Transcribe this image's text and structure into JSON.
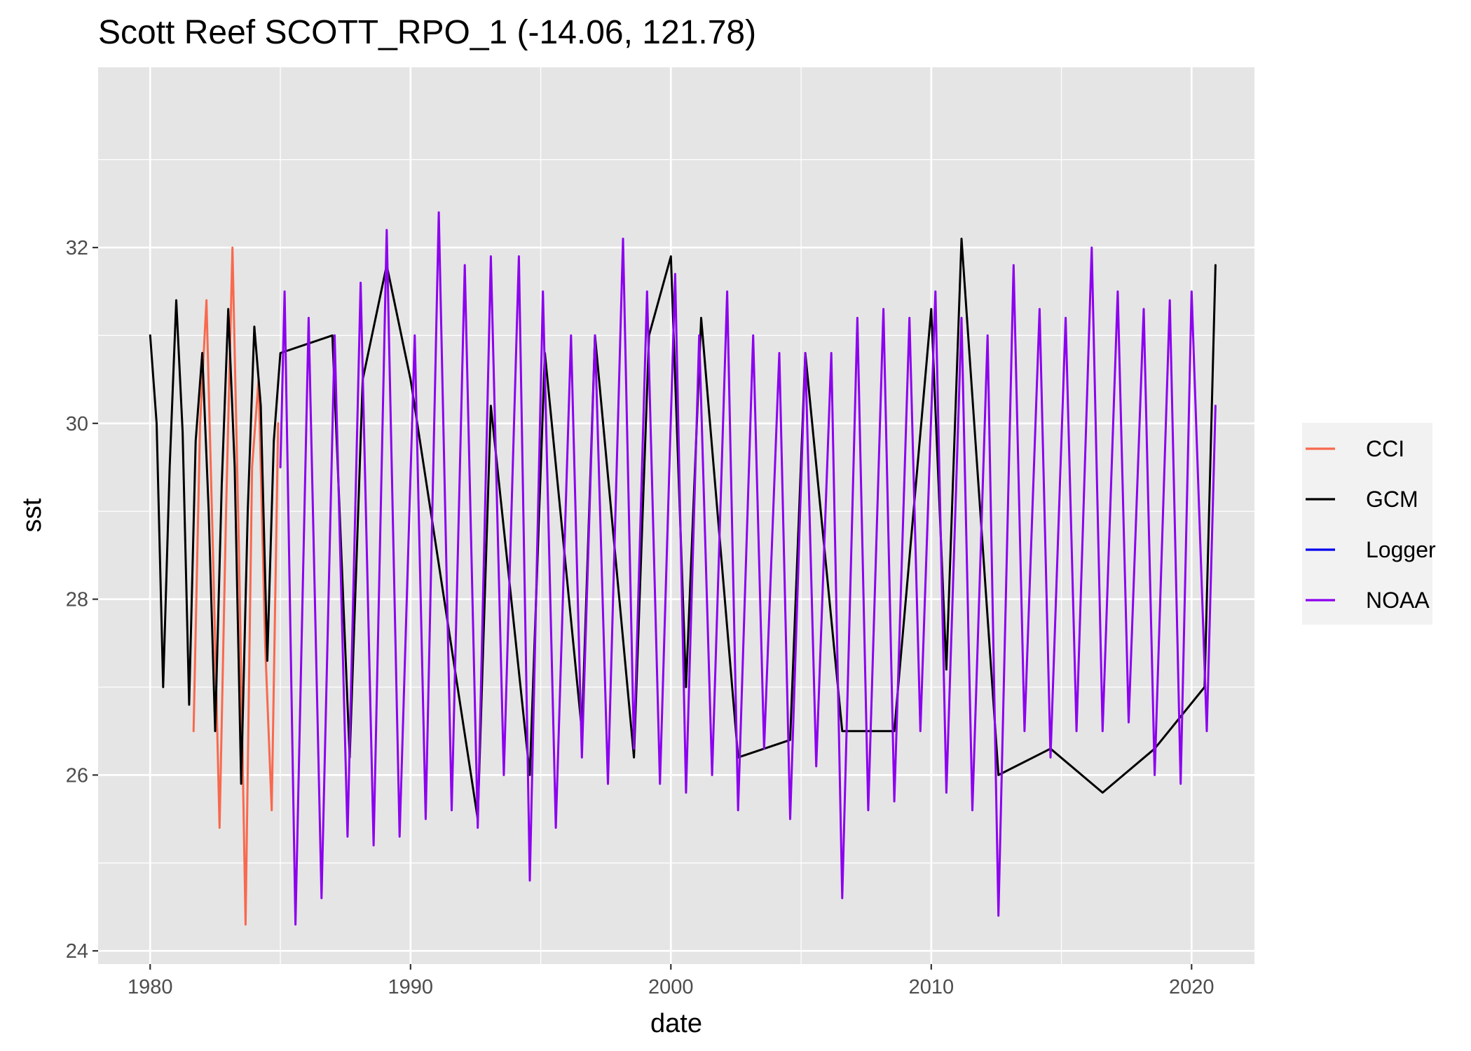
{
  "chart_data": {
    "type": "line",
    "title": "Scott Reef SCOTT_RPO_1 (-14.06, 121.78)",
    "xlabel": "date",
    "ylabel": "sst",
    "x_type": "date",
    "xlim": [
      "1978-01-01",
      "2022-06-01"
    ],
    "ylim": [
      23.85,
      34.05
    ],
    "x_ticks": [
      "1980",
      "1990",
      "2000",
      "2010",
      "2020"
    ],
    "x_tick_dates": [
      "1980-01-01",
      "1990-01-01",
      "2000-01-01",
      "2010-01-01",
      "2020-01-01"
    ],
    "x_minor_dates": [
      "1985-01-01",
      "1995-01-01",
      "2005-01-01",
      "2015-01-01"
    ],
    "y_ticks": [
      24,
      26,
      28,
      30,
      32
    ],
    "y_minor": [
      25,
      27,
      29,
      31,
      33
    ],
    "grid": true,
    "panel_color": "#e5e5e5",
    "legend_position": "right",
    "series": [
      {
        "name": "CCI",
        "color": "#f8694e",
        "x": [
          "1981-09-01",
          "1981-12-01",
          "1982-03-01",
          "1982-06-01",
          "1982-09-01",
          "1982-12-01",
          "1983-03-01",
          "1983-06-01",
          "1983-09-01",
          "1983-12-01",
          "1984-03-01",
          "1984-06-01",
          "1984-09-01",
          "1984-12-01"
        ],
        "y": [
          26.5,
          30.0,
          31.4,
          28.5,
          25.4,
          29.0,
          32.0,
          28.5,
          24.3,
          29.5,
          30.5,
          27.5,
          25.6,
          30.0
        ]
      },
      {
        "name": "GCM",
        "color": "#000000",
        "x": [
          "1980-01-01",
          "1980-04-01",
          "1980-07-01",
          "1980-10-01",
          "1981-01-01",
          "1981-04-01",
          "1981-07-01",
          "1981-10-01",
          "1982-01-01",
          "1982-04-01",
          "1982-07-01",
          "1982-10-01",
          "1983-01-01",
          "1983-04-01",
          "1983-07-01",
          "1983-10-01",
          "1984-01-01",
          "1984-04-01",
          "1984-07-01",
          "1984-10-01",
          "1985-01-01",
          "1987-01-01",
          "1987-09-01",
          "1988-03-01",
          "1989-02-01",
          "1990-01-01",
          "1992-08-01",
          "1993-02-01",
          "1994-08-01",
          "1995-03-01",
          "1996-08-01",
          "1997-02-01",
          "1998-08-01",
          "1999-03-01",
          "2000-01-01",
          "2000-08-01",
          "2001-03-01",
          "2002-08-01",
          "2004-08-01",
          "2005-03-01",
          "2006-08-01",
          "2008-08-01",
          "2010-01-01",
          "2010-08-01",
          "2011-03-01",
          "2012-08-01",
          "2014-08-01",
          "2016-08-01",
          "2018-08-01",
          "2020-07-01",
          "2020-12-01"
        ],
        "y": [
          31.0,
          30.0,
          27.0,
          29.5,
          31.4,
          29.9,
          26.8,
          29.8,
          30.8,
          29.0,
          26.5,
          29.3,
          31.3,
          29.5,
          25.9,
          29.0,
          31.1,
          30.2,
          27.3,
          29.8,
          30.8,
          31.0,
          26.2,
          30.5,
          31.8,
          30.5,
          25.5,
          30.2,
          26.0,
          30.8,
          26.5,
          31.0,
          26.2,
          31.0,
          31.9,
          27.0,
          31.2,
          26.2,
          26.4,
          30.8,
          26.5,
          26.5,
          31.3,
          27.2,
          32.1,
          26.0,
          26.3,
          25.8,
          26.3,
          27.0,
          31.8
        ]
      },
      {
        "name": "Logger",
        "color": "#0000ee",
        "x": [],
        "y": []
      },
      {
        "name": "NOAA",
        "color": "#8c00ee",
        "x": [
          "1985-01-01",
          "1985-03-01",
          "1985-08-01",
          "1986-02-01",
          "1986-08-01",
          "1987-02-01",
          "1987-08-01",
          "1988-02-01",
          "1988-08-01",
          "1989-02-01",
          "1989-08-01",
          "1990-03-01",
          "1990-08-01",
          "1991-02-01",
          "1991-08-01",
          "1992-02-01",
          "1992-08-01",
          "1993-02-01",
          "1993-08-01",
          "1994-03-01",
          "1994-08-01",
          "1995-02-01",
          "1995-08-01",
          "1996-03-01",
          "1996-08-01",
          "1997-02-01",
          "1997-08-01",
          "1998-03-01",
          "1998-08-01",
          "1999-02-01",
          "1999-08-01",
          "2000-03-01",
          "2000-08-01",
          "2001-02-01",
          "2001-08-01",
          "2002-03-01",
          "2002-08-01",
          "2003-03-01",
          "2003-08-01",
          "2004-03-01",
          "2004-08-01",
          "2005-03-01",
          "2005-08-01",
          "2006-03-01",
          "2006-08-01",
          "2007-03-01",
          "2007-08-01",
          "2008-03-01",
          "2008-08-01",
          "2009-03-01",
          "2009-08-01",
          "2010-03-01",
          "2010-08-01",
          "2011-03-01",
          "2011-08-01",
          "2012-03-01",
          "2012-08-01",
          "2013-03-01",
          "2013-08-01",
          "2014-03-01",
          "2014-08-01",
          "2015-03-01",
          "2015-08-01",
          "2016-03-01",
          "2016-08-01",
          "2017-03-01",
          "2017-08-01",
          "2018-03-01",
          "2018-08-01",
          "2019-03-01",
          "2019-08-01",
          "2020-01-01",
          "2020-08-01",
          "2020-12-01"
        ],
        "y": [
          29.5,
          31.5,
          24.3,
          31.2,
          24.6,
          31.0,
          25.3,
          31.6,
          25.2,
          32.2,
          25.3,
          31.0,
          25.5,
          32.4,
          25.6,
          31.8,
          25.4,
          31.9,
          26.0,
          31.9,
          24.8,
          31.5,
          25.4,
          31.0,
          26.2,
          31.0,
          25.9,
          32.1,
          26.3,
          31.5,
          25.9,
          31.7,
          25.8,
          31.0,
          26.0,
          31.5,
          25.6,
          31.0,
          26.3,
          30.8,
          25.5,
          30.8,
          26.1,
          30.8,
          24.6,
          31.2,
          25.6,
          31.3,
          25.7,
          31.2,
          26.5,
          31.5,
          25.8,
          31.2,
          25.6,
          31.0,
          24.4,
          31.8,
          26.5,
          31.3,
          26.2,
          31.2,
          26.5,
          32.0,
          26.5,
          31.5,
          26.6,
          31.3,
          26.0,
          31.4,
          25.9,
          31.5,
          26.5,
          30.2
        ]
      }
    ]
  }
}
